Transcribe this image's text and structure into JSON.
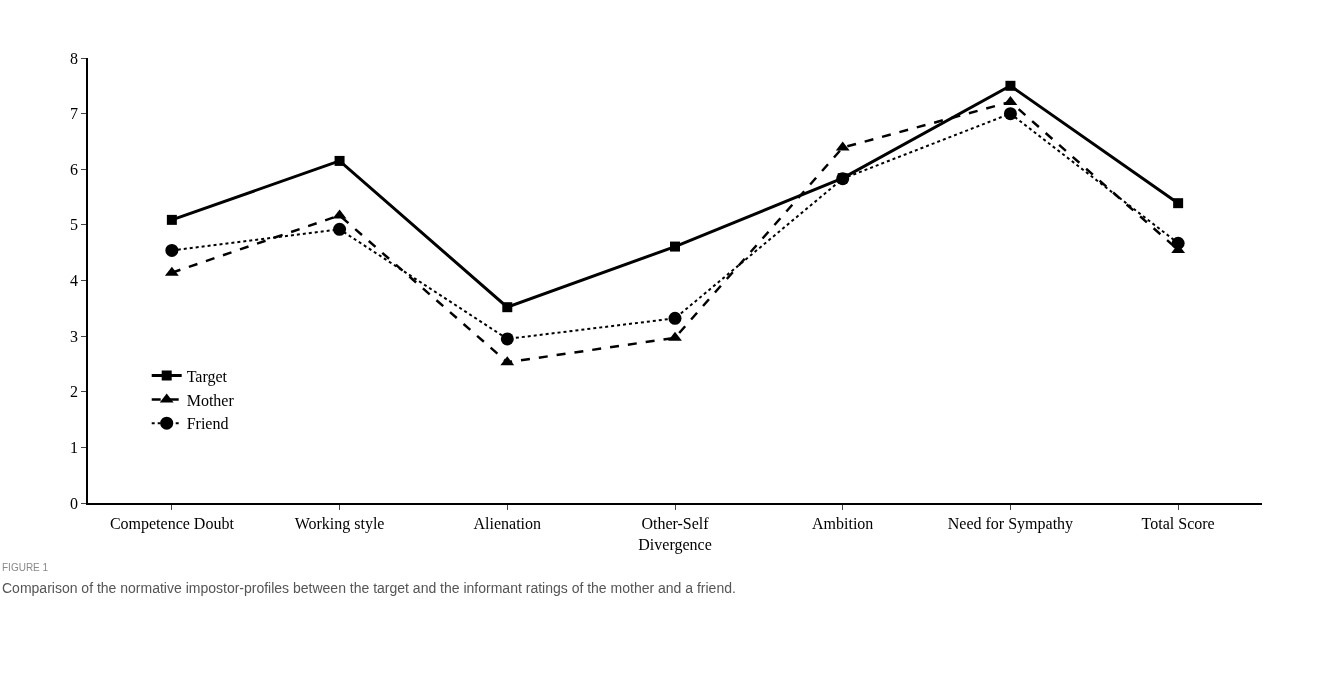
{
  "chart_data": {
    "type": "line",
    "categories": [
      "Competence Doubt",
      "Working style",
      "Alienation",
      "Other-Self\nDivergence",
      "Ambition",
      "Need for Sympathy",
      "Total Score"
    ],
    "series": [
      {
        "name": "Target",
        "color": "#000000",
        "marker": "square",
        "line_style": "solid",
        "values": [
          5.09,
          6.15,
          3.52,
          4.61,
          5.84,
          7.5,
          5.39
        ]
      },
      {
        "name": "Mother",
        "color": "#000000",
        "marker": "triangle",
        "line_style": "dashed",
        "values": [
          4.14,
          5.17,
          2.53,
          2.97,
          6.39,
          7.21,
          4.55
        ]
      },
      {
        "name": "Friend",
        "color": "#000000",
        "marker": "circle",
        "line_style": "dotted",
        "values": [
          4.54,
          4.92,
          2.95,
          3.32,
          5.83,
          7.0,
          4.67
        ]
      }
    ],
    "ylim": [
      0,
      8
    ],
    "yticks": [
      0,
      1,
      2,
      3,
      4,
      5,
      6,
      7,
      8
    ],
    "grid": false,
    "legend": "bottom left",
    "annotations": [
      "FIGURE 1",
      "Comparison of the normative impostor-profiles between the target and the informant ratings of the mother and a friend."
    ]
  }
}
